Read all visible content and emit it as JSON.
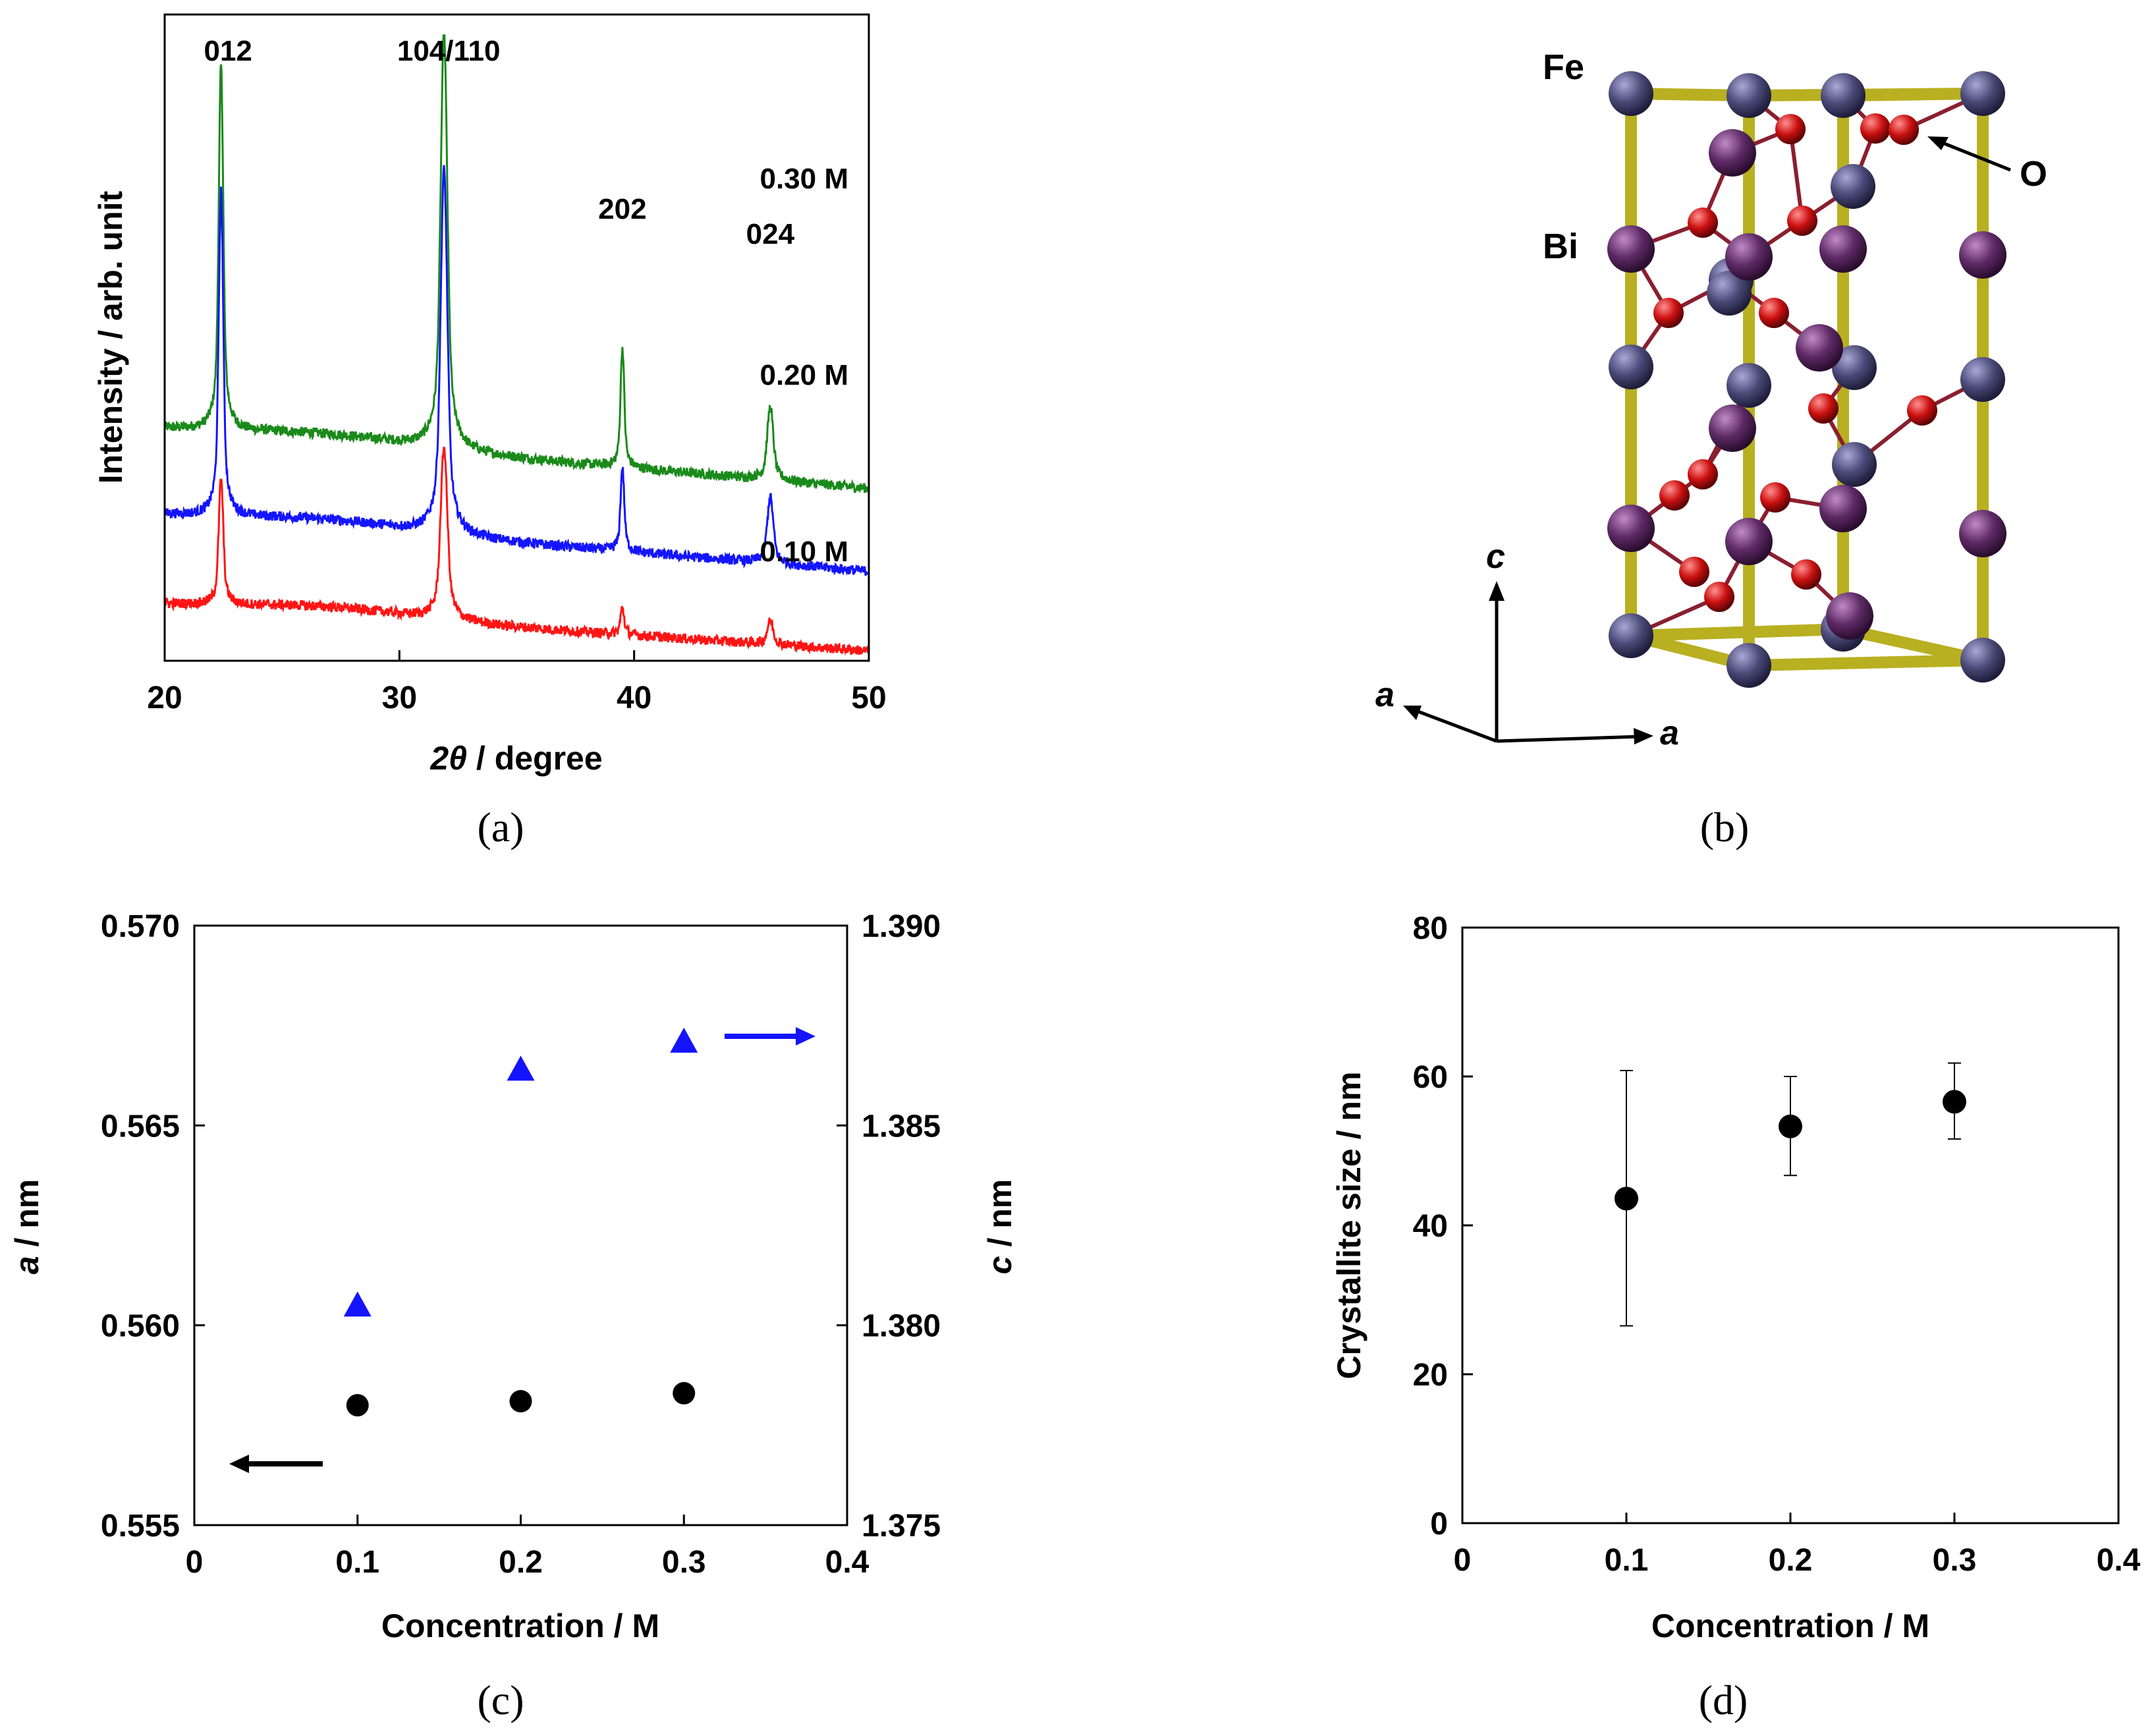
{
  "colors": {
    "green": "#1a8a1a",
    "blue": "#1414ff",
    "red": "#ff1414",
    "black": "#000000",
    "fe": "#4b4a78",
    "bi": "#5e2a66",
    "o": "#cc1010",
    "rod": "#b8b020"
  },
  "panels": {
    "a": {
      "label": "(a)"
    },
    "b": {
      "label": "(b)",
      "atoms": {
        "fe": "Fe",
        "bi": "Bi",
        "o": "O"
      },
      "axes": {
        "c": "c",
        "a1": "a",
        "a2": "a"
      }
    },
    "c": {
      "label": "(c)"
    },
    "d": {
      "label": "(d)"
    }
  },
  "chart_data": [
    {
      "id": "a",
      "type": "line",
      "title": "",
      "xlabel_italic": "2θ",
      "xlabel_rest": " / degree",
      "ylabel": "Intensity / arb. unit",
      "xlim": [
        20,
        50
      ],
      "xticks": [
        "20",
        "30",
        "40",
        "50"
      ],
      "peak_labels": [
        "012",
        "104/110",
        "202",
        "024"
      ],
      "peaks_2theta": [
        22.4,
        31.9,
        39.5,
        45.8
      ],
      "series": [
        {
          "name": "0.30 M",
          "color": "#1a8a1a",
          "baseline_left": 0.7,
          "baseline_right": 0.52,
          "peak_heights": [
            1.1,
            1.25,
            0.36,
            0.22
          ]
        },
        {
          "name": "0.20 M",
          "color": "#1414ff",
          "baseline_left": 0.44,
          "baseline_right": 0.27,
          "peak_heights": [
            0.98,
            1.1,
            0.25,
            0.2
          ]
        },
        {
          "name": "0.10 M",
          "color": "#ff1414",
          "baseline_left": 0.17,
          "baseline_right": 0.03,
          "peak_heights": [
            0.38,
            0.52,
            0.08,
            0.07
          ]
        }
      ]
    },
    {
      "id": "c",
      "type": "scatter",
      "xlabel": "Concentration / M",
      "ylabel_left_italic": "a",
      "ylabel_left_rest": " / nm",
      "ylabel_right_italic": "c",
      "ylabel_right_rest": " / nm",
      "xlim": [
        0,
        0.4
      ],
      "xticks": [
        "0",
        "0.1",
        "0.2",
        "0.3",
        "0.4"
      ],
      "ylim_left": [
        0.555,
        0.57
      ],
      "yticks_left": [
        "0.555",
        "0.560",
        "0.565",
        "0.570"
      ],
      "ylim_right": [
        1.375,
        1.39
      ],
      "yticks_right": [
        "1.375",
        "1.380",
        "1.385",
        "1.390"
      ],
      "series": [
        {
          "name": "a",
          "axis": "left",
          "marker": "circle",
          "color": "#000000",
          "x": [
            0.1,
            0.2,
            0.3
          ],
          "y": [
            0.558,
            0.5581,
            0.5583
          ]
        },
        {
          "name": "c",
          "axis": "right",
          "marker": "triangle",
          "color": "#1414ff",
          "x": [
            0.1,
            0.2,
            0.3
          ],
          "y": [
            1.3805,
            1.3864,
            1.3871
          ]
        }
      ]
    },
    {
      "id": "d",
      "type": "scatter",
      "xlabel": "Concentration / M",
      "ylabel": "Crystallite size / nm",
      "xlim": [
        0,
        0.4
      ],
      "xticks": [
        "0",
        "0.1",
        "0.2",
        "0.3",
        "0.4"
      ],
      "ylim": [
        0,
        80
      ],
      "yticks": [
        "0",
        "20",
        "40",
        "60",
        "80"
      ],
      "series": [
        {
          "name": "Crystallite size",
          "marker": "circle",
          "color": "#000000",
          "x": [
            0.1,
            0.2,
            0.3
          ],
          "y": [
            43.6,
            53.3,
            56.6
          ],
          "err_low": [
            26.5,
            46.7,
            51.6
          ],
          "err_high": [
            60.8,
            60.0,
            61.8
          ]
        }
      ]
    }
  ]
}
